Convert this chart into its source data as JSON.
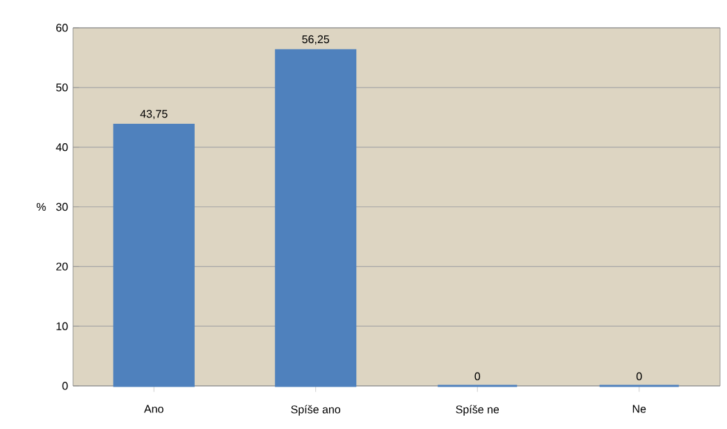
{
  "chart_data": {
    "type": "bar",
    "ylabel": "%",
    "categories": [
      "Ano",
      "Spíše ano",
      "Spíše ne",
      "Ne"
    ],
    "values": [
      43.75,
      56.25,
      0,
      0
    ],
    "value_labels": [
      "43,75",
      "56,25",
      "0",
      "0"
    ],
    "color": "#4f81bd",
    "ylim": [
      0,
      60
    ],
    "yticks": [
      0,
      10,
      20,
      30,
      40,
      50,
      60
    ],
    "grid": "y"
  }
}
